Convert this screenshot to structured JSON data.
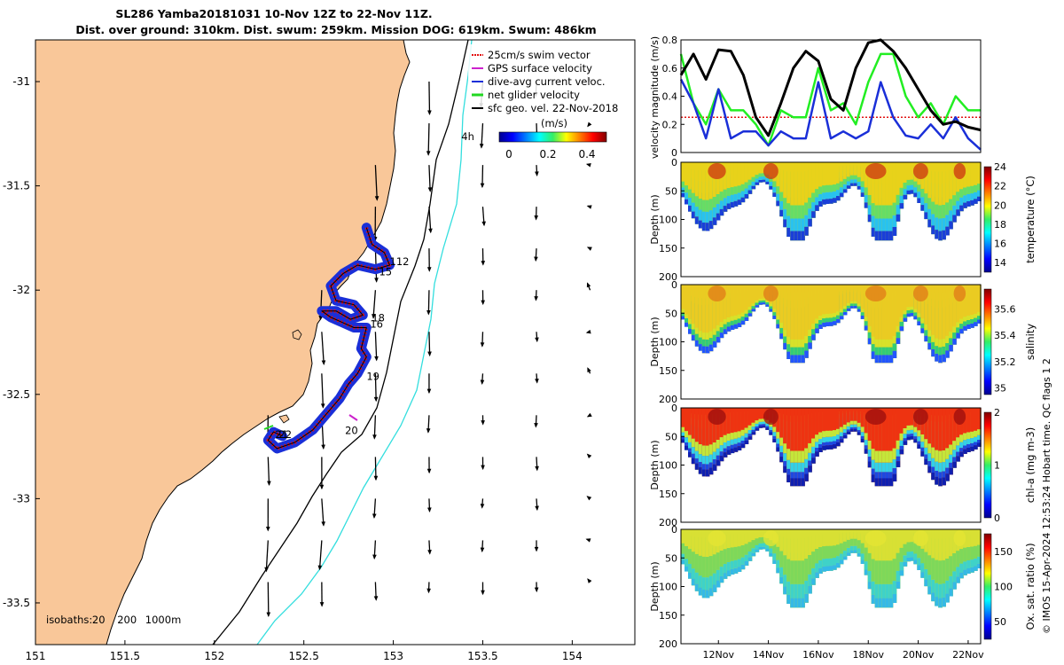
{
  "title": {
    "line1": "SL286 Yamba20181031 10-Nov 12Z to 22-Nov 11Z.",
    "line2": "Dist. over ground: 310km. Dist. swum: 259km. Mission DOG: 619km. Swum: 486km"
  },
  "copyright": "© IMOS 15-Apr-2024 12:53:24 Hobart time. QC flags 1  2",
  "colors": {
    "land": "#f9c799",
    "coast": "#000000",
    "isobath_200": "#000000",
    "isobath_1000": "#33dede",
    "track_red": "#e11111",
    "track_blue": "#1a2fd8",
    "track_green": "#22d822",
    "gps_magenta": "#cc22cc",
    "vel_black": "#000000",
    "vel_green": "#22ee22",
    "vel_blue": "#1a2fd8",
    "vel_red_dotted": "#e11111"
  },
  "chart_data": [
    {
      "type": "map",
      "xlim": [
        151,
        154.35
      ],
      "ylim": [
        -33.7,
        -30.8
      ],
      "xticks": [
        "151",
        "151.5",
        "152",
        "152.5",
        "153",
        "153.5",
        "154"
      ],
      "yticks": [
        "-31",
        "-31.5",
        "-32",
        "-32.5",
        "-33",
        "-33.5"
      ],
      "legend": {
        "placement": "top-right",
        "entries": [
          "25cm/s swim vector",
          "GPS surface velocity",
          "dive-avg current veloc.",
          "net glider velocity",
          "sfc geo. vel. 22-Nov-2018"
        ]
      },
      "colorbar": {
        "label": "(m/s)",
        "range": [
          0,
          0.5
        ],
        "ticks": [
          "0",
          "0.2",
          "0.4"
        ]
      },
      "isobaths_text": "isobaths:",
      "isobath_levels": [
        "20",
        "200",
        "1000m"
      ],
      "annotations": [
        {
          "text": "4h",
          "lon": 153.38,
          "lat": -31.28
        },
        {
          "text": "112",
          "lon": 152.98,
          "lat": -31.88
        },
        {
          "text": "15",
          "lon": 152.92,
          "lat": -31.93
        },
        {
          "text": "18",
          "lon": 152.88,
          "lat": -32.15
        },
        {
          "text": "16",
          "lon": 152.87,
          "lat": -32.18
        },
        {
          "text": "19",
          "lon": 152.85,
          "lat": -32.43
        },
        {
          "text": "20",
          "lon": 152.73,
          "lat": -32.69
        },
        {
          "text": "21",
          "lon": 152.34,
          "lat": -32.71
        },
        {
          "text": "22",
          "lon": 152.36,
          "lat": -32.71
        }
      ],
      "track": [
        [
          152.85,
          -31.7
        ],
        [
          152.88,
          -31.78
        ],
        [
          152.95,
          -31.82
        ],
        [
          152.98,
          -31.88
        ],
        [
          152.9,
          -31.9
        ],
        [
          152.8,
          -31.88
        ],
        [
          152.72,
          -31.92
        ],
        [
          152.65,
          -31.98
        ],
        [
          152.68,
          -32.05
        ],
        [
          152.78,
          -32.07
        ],
        [
          152.83,
          -32.12
        ],
        [
          152.76,
          -32.14
        ],
        [
          152.68,
          -32.1
        ],
        [
          152.6,
          -32.1
        ],
        [
          152.65,
          -32.13
        ],
        [
          152.78,
          -32.18
        ],
        [
          152.85,
          -32.18
        ],
        [
          152.82,
          -32.28
        ],
        [
          152.85,
          -32.32
        ],
        [
          152.8,
          -32.4
        ],
        [
          152.75,
          -32.45
        ],
        [
          152.7,
          -32.52
        ],
        [
          152.62,
          -32.6
        ],
        [
          152.55,
          -32.67
        ],
        [
          152.45,
          -32.73
        ],
        [
          152.35,
          -32.76
        ],
        [
          152.3,
          -32.72
        ],
        [
          152.33,
          -32.68
        ],
        [
          152.38,
          -32.7
        ]
      ],
      "vector_samples": [
        {
          "lon": 153.05,
          "lat": -31.35,
          "u": 0.0,
          "v": -0.35
        },
        {
          "lon": 153.5,
          "lat": -32.5,
          "u": 0.02,
          "v": -0.4
        },
        {
          "lon": 153.6,
          "lat": -33.5,
          "u": 0.05,
          "v": -0.55
        }
      ]
    },
    {
      "type": "line",
      "ylabel": "velocity magnitude (m/s)",
      "ylim": [
        0,
        0.8
      ],
      "yticks": [
        "0",
        "0.2",
        "0.4",
        "0.6",
        "0.8"
      ],
      "xlim": [
        10.5,
        22.5
      ],
      "series": [
        {
          "name": "black",
          "x": [
            10.5,
            11,
            11.5,
            12,
            12.5,
            13,
            13.5,
            14,
            14.5,
            15,
            15.5,
            16,
            16.5,
            17,
            17.5,
            18,
            18.5,
            19,
            19.5,
            20,
            20.5,
            21,
            21.5,
            22,
            22.5
          ],
          "y": [
            0.55,
            0.7,
            0.52,
            0.73,
            0.72,
            0.55,
            0.25,
            0.12,
            0.35,
            0.6,
            0.72,
            0.65,
            0.38,
            0.3,
            0.6,
            0.78,
            0.8,
            0.72,
            0.6,
            0.45,
            0.3,
            0.2,
            0.22,
            0.18,
            0.16
          ]
        },
        {
          "name": "green",
          "x": [
            10.5,
            11,
            11.5,
            12,
            12.5,
            13,
            13.5,
            14,
            14.5,
            15,
            15.5,
            16,
            16.5,
            17,
            17.5,
            18,
            18.5,
            19,
            19.5,
            20,
            20.5,
            21,
            21.5,
            22,
            22.5
          ],
          "y": [
            0.7,
            0.35,
            0.2,
            0.45,
            0.3,
            0.3,
            0.2,
            0.05,
            0.3,
            0.25,
            0.25,
            0.6,
            0.3,
            0.35,
            0.2,
            0.5,
            0.7,
            0.7,
            0.4,
            0.25,
            0.35,
            0.2,
            0.4,
            0.3,
            0.3
          ]
        },
        {
          "name": "blue",
          "x": [
            10.5,
            11,
            11.5,
            12,
            12.5,
            13,
            13.5,
            14,
            14.5,
            15,
            15.5,
            16,
            16.5,
            17,
            17.5,
            18,
            18.5,
            19,
            19.5,
            20,
            20.5,
            21,
            21.5,
            22,
            22.5
          ],
          "y": [
            0.52,
            0.35,
            0.1,
            0.45,
            0.1,
            0.15,
            0.15,
            0.05,
            0.15,
            0.1,
            0.1,
            0.5,
            0.1,
            0.15,
            0.1,
            0.15,
            0.5,
            0.25,
            0.12,
            0.1,
            0.2,
            0.1,
            0.25,
            0.1,
            0.02
          ]
        },
        {
          "name": "red-dotted",
          "x": [
            10.5,
            22.5
          ],
          "y": [
            0.25,
            0.25
          ]
        }
      ]
    },
    {
      "type": "heatmap",
      "ylabel": "Depth (m)",
      "ylim": [
        200,
        0
      ],
      "yticks": [
        "0",
        "50",
        "100",
        "150",
        "200"
      ],
      "colorbar_label": "temperature (°C)",
      "colorbar_range": [
        13,
        24
      ],
      "colorbar_ticks": [
        "14",
        "16",
        "18",
        "20",
        "22",
        "24"
      ],
      "palette": "jet"
    },
    {
      "type": "heatmap",
      "ylabel": "Depth (m)",
      "ylim": [
        200,
        0
      ],
      "yticks": [
        "0",
        "50",
        "100",
        "150",
        "200"
      ],
      "colorbar_label": "salinity",
      "colorbar_range": [
        34.95,
        35.75
      ],
      "colorbar_ticks": [
        "35",
        "35.2",
        "35.4",
        "35.6"
      ],
      "palette": "jet"
    },
    {
      "type": "heatmap",
      "ylabel": "Depth (m)",
      "ylim": [
        200,
        0
      ],
      "yticks": [
        "0",
        "50",
        "100",
        "150",
        "200"
      ],
      "colorbar_label": "chl-a (mg m-3)",
      "colorbar_range": [
        0,
        2
      ],
      "colorbar_ticks": [
        "0",
        "1",
        "2"
      ],
      "palette": "jet"
    },
    {
      "type": "heatmap",
      "ylabel": "Depth (m)",
      "ylim": [
        200,
        0
      ],
      "yticks": [
        "0",
        "50",
        "100",
        "150",
        "200"
      ],
      "colorbar_label": "Ox. sat. ratio (%)",
      "colorbar_range": [
        25,
        175
      ],
      "colorbar_ticks": [
        "50",
        "100",
        "150"
      ],
      "palette": "jet",
      "xticks": [
        "12Nov",
        "14Nov",
        "16Nov",
        "18Nov",
        "20Nov",
        "22Nov"
      ]
    }
  ]
}
